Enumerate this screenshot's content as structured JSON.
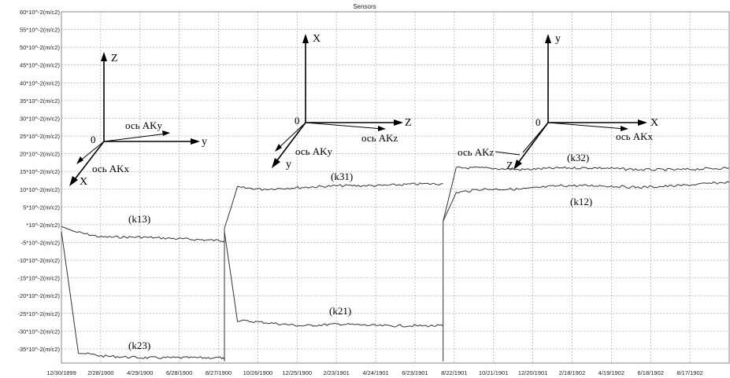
{
  "chart_data": {
    "type": "line",
    "title": "Sensors",
    "y_ticks": [
      "60*10^-2(m/c2)",
      "55*10^-2(m/c2)",
      "50*10^-2(m/c2)",
      "45*10^-2(m/c2)",
      "40*10^-2(m/c2)",
      "35*10^-2(m/c2)",
      "30*10^-2(m/c2)",
      "25*10^-2(m/c2)",
      "20*10^-2(m/c2)",
      "15*10^-2(m/c2)",
      "10*10^-2(m/c2)",
      "5*10^-2(m/c2)",
      "*10^-2(m/c2)",
      "-5*10^-2(m/c2)",
      "-10*10^-2(m/c2)",
      "-15*10^-2(m/c2)",
      "-20*10^-2(m/c2)",
      "-25*10^-2(m/c2)",
      "-30*10^-2(m/c2)",
      "-35*10^-2(m/c2)"
    ],
    "y_tick_values": [
      60,
      55,
      50,
      45,
      40,
      35,
      30,
      25,
      20,
      15,
      10,
      5,
      0,
      -5,
      -10,
      -15,
      -20,
      -25,
      -30,
      -35
    ],
    "ylim": [
      -39,
      60
    ],
    "x_ticks": [
      "12/30/1899",
      "2/28/1900",
      "4/29/1900",
      "6/28/1900",
      "8/27/1900",
      "10/26/1900",
      "12/25/1900",
      "2/23/1901",
      "4/24/1901",
      "6/23/1901",
      "8/22/1901",
      "10/21/1901",
      "12/20/1901",
      "2/18/1902",
      "4/19/1902",
      "6/18/1902",
      "8/17/1902"
    ],
    "xlim": [
      "12/30/1899",
      "10/16/1902"
    ],
    "grid": true,
    "segments": [
      {
        "labels": [
          "(k13)",
          "(k23)"
        ],
        "x_start": "12/30/1899",
        "x_end": "9/5/1900",
        "series": [
          {
            "name": "(k13)",
            "points": [
              [
                "12/30/1899",
                -0.5
              ],
              [
                "1/20/1900",
                -2
              ],
              [
                "3/1/1900",
                -3.5
              ],
              [
                "5/1/1900",
                -3.5
              ],
              [
                "7/1/1900",
                -4
              ],
              [
                "9/1/1900",
                -4.5
              ],
              [
                "9/5/1900",
                -4.5
              ]
            ]
          },
          {
            "name": "(k23)",
            "points": [
              [
                "12/30/1899",
                -2
              ],
              [
                "1/25/1900",
                -36
              ],
              [
                "3/1/1900",
                -37
              ],
              [
                "5/1/1900",
                -37.5
              ],
              [
                "7/1/1900",
                -37.5
              ],
              [
                "9/1/1900",
                -37.5
              ],
              [
                "9/5/1900",
                -38
              ]
            ]
          }
        ]
      },
      {
        "labels": [
          "(k31)",
          "(k21)"
        ],
        "x_start": "9/5/1900",
        "x_end": "8/5/1901",
        "series": [
          {
            "name": "(k31)",
            "points": [
              [
                "9/5/1900",
                -1
              ],
              [
                "9/25/1900",
                10.5
              ],
              [
                "11/1/1900",
                10
              ],
              [
                "1/1/1901",
                10.5
              ],
              [
                "3/1/1901",
                11
              ],
              [
                "5/1/1901",
                11
              ],
              [
                "7/1/1901",
                11.5
              ],
              [
                "8/5/1901",
                11.5
              ]
            ]
          },
          {
            "name": "(k21)",
            "points": [
              [
                "9/5/1900",
                -2
              ],
              [
                "9/25/1900",
                -27
              ],
              [
                "11/1/1900",
                -27.5
              ],
              [
                "1/1/1901",
                -28.5
              ],
              [
                "3/1/1901",
                -28
              ],
              [
                "5/1/1901",
                -28.5
              ],
              [
                "7/1/1901",
                -28.5
              ],
              [
                "8/5/1901",
                -28.5
              ]
            ]
          }
        ]
      },
      {
        "labels": [
          "(k32)",
          "(k12)"
        ],
        "x_start": "8/5/1901",
        "x_end": "10/16/1902",
        "series": [
          {
            "name": "(k32)",
            "points": [
              [
                "8/5/1901",
                1
              ],
              [
                "8/25/1901",
                16
              ],
              [
                "10/1/1901",
                16
              ],
              [
                "12/1/1901",
                15.5
              ],
              [
                "2/1/1902",
                16
              ],
              [
                "4/1/1902",
                16
              ],
              [
                "6/1/1902",
                15.5
              ],
              [
                "8/1/1902",
                15.5
              ],
              [
                "10/16/1902",
                16
              ]
            ]
          },
          {
            "name": "(k12)",
            "points": [
              [
                "8/5/1901",
                1
              ],
              [
                "8/25/1901",
                9
              ],
              [
                "10/1/1901",
                10
              ],
              [
                "12/1/1901",
                10
              ],
              [
                "2/1/1902",
                11
              ],
              [
                "4/1/1902",
                11
              ],
              [
                "6/1/1902",
                10.5
              ],
              [
                "8/1/1902",
                11
              ],
              [
                "10/16/1902",
                12
              ]
            ]
          }
        ]
      }
    ],
    "annotations": {
      "diagram1": {
        "z": "Z",
        "y": "y",
        "x": "X",
        "o": "0",
        "ax_y": "ось AKy",
        "ax_x": "ось AKx"
      },
      "diagram2": {
        "x": "X",
        "z": "Z",
        "y": "y",
        "o": "0",
        "ax_y": "ось AKy",
        "ax_z": "ось AKz"
      },
      "diagram3": {
        "y": "y",
        "x": "X",
        "z": "Z",
        "o": "0",
        "ax_x": "ось AKx",
        "ax_z": "ось AKz"
      }
    }
  }
}
